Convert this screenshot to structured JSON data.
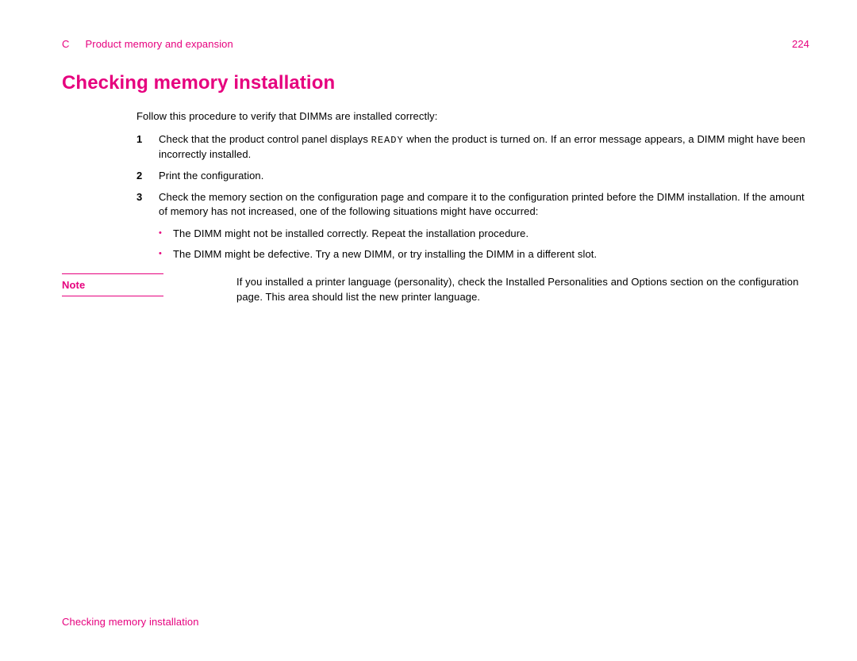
{
  "colors": {
    "accent": "#e6007e",
    "text": "#000000",
    "background": "#ffffff"
  },
  "header": {
    "section_letter": "C",
    "section_title": "Product memory and expansion",
    "page_number": "224"
  },
  "heading": "Checking memory installation",
  "intro": "Follow this procedure to verify that DIMMs are installed correctly:",
  "steps": [
    {
      "num": "1",
      "pre": "Check that the product control panel displays ",
      "mono": "READY",
      "post": " when the product is turned on. If an error message appears, a DIMM might have been incorrectly installed."
    },
    {
      "num": "2",
      "text": "Print the configuration."
    },
    {
      "num": "3",
      "text": "Check the memory section on the configuration page and compare it to the configuration printed before the DIMM installation. If the amount of memory has not increased, one of the following situations might have occurred:"
    }
  ],
  "bullets": [
    "The DIMM might not be installed correctly. Repeat the installation procedure.",
    "The DIMM might be defective. Try a new DIMM, or try installing the DIMM in a different slot."
  ],
  "note": {
    "label": "Note",
    "body": "If you installed a printer language (personality), check the Installed Personalities and Options section on the configuration page. This area should list the new printer language."
  },
  "footer": "Checking memory installation"
}
